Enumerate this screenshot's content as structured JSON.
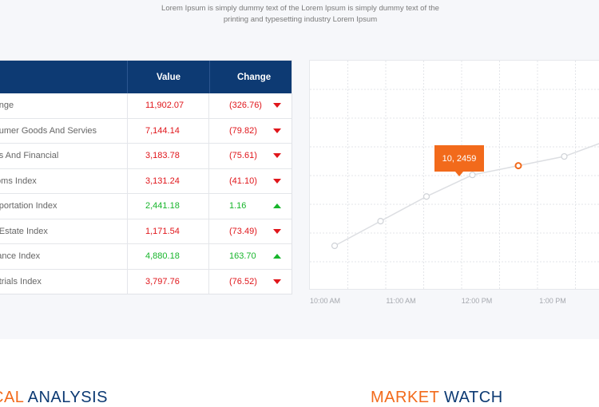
{
  "intro_text": "Lorem Ipsum is simply dummy text of the Lorem Ipsum is simply dummy text of the printing and typesetting industry Lorem Ipsum",
  "table": {
    "headers": {
      "name": "",
      "value": "Value",
      "change": "Change"
    },
    "rows": [
      {
        "name": "change",
        "value": "11,902.07",
        "change": "(326.76)",
        "direction": "down"
      },
      {
        "name": "onsumer Goods And Servies",
        "value": "7,144.14",
        "change": "(79.82)",
        "direction": "down"
      },
      {
        "name": "anks And Financial",
        "value": "3,183.78",
        "change": "(75.61)",
        "direction": "down"
      },
      {
        "name": "lecoms Index",
        "value": "3,131.24",
        "change": "(41.10)",
        "direction": "down"
      },
      {
        "name": "ansportation Index",
        "value": "2,441.18",
        "change": "1.16",
        "direction": "up"
      },
      {
        "name": "eal Estate Index",
        "value": "1,171.54",
        "change": "(73.49)",
        "direction": "down"
      },
      {
        "name": "surance Index",
        "value": "4,880.18",
        "change": "163.70",
        "direction": "up"
      },
      {
        "name": "dustrials Index",
        "value": "3,797.76",
        "change": "(76.52)",
        "direction": "down"
      }
    ]
  },
  "chart_data": {
    "type": "line",
    "x": [
      "10:00 AM",
      "10:30 AM",
      "11:00 AM",
      "11:30 AM",
      "12:00 PM",
      "12:30 PM",
      "1:00 PM",
      "1:30 PM"
    ],
    "series": [
      {
        "values": [
          0.14,
          0.3,
          0.46,
          0.6,
          0.66,
          0.72,
          0.83,
          1.0
        ]
      }
    ],
    "xticks": [
      "10:00 AM",
      "11:00 AM",
      "12:00 PM",
      "1:00 PM"
    ],
    "highlight_index": 4,
    "tooltip": "10, 2459",
    "line_color": "#dcdee2",
    "highlight_color": "#f26a1b"
  },
  "sections": {
    "left_accent": "CAL",
    "left_rest": " ANALYSIS",
    "right_accent": "MARKET",
    "right_rest": " WATCH"
  },
  "colors": {
    "header": "#0d3a73",
    "negative": "#e0161b",
    "positive": "#17b52b",
    "accent": "#f26a1b"
  }
}
